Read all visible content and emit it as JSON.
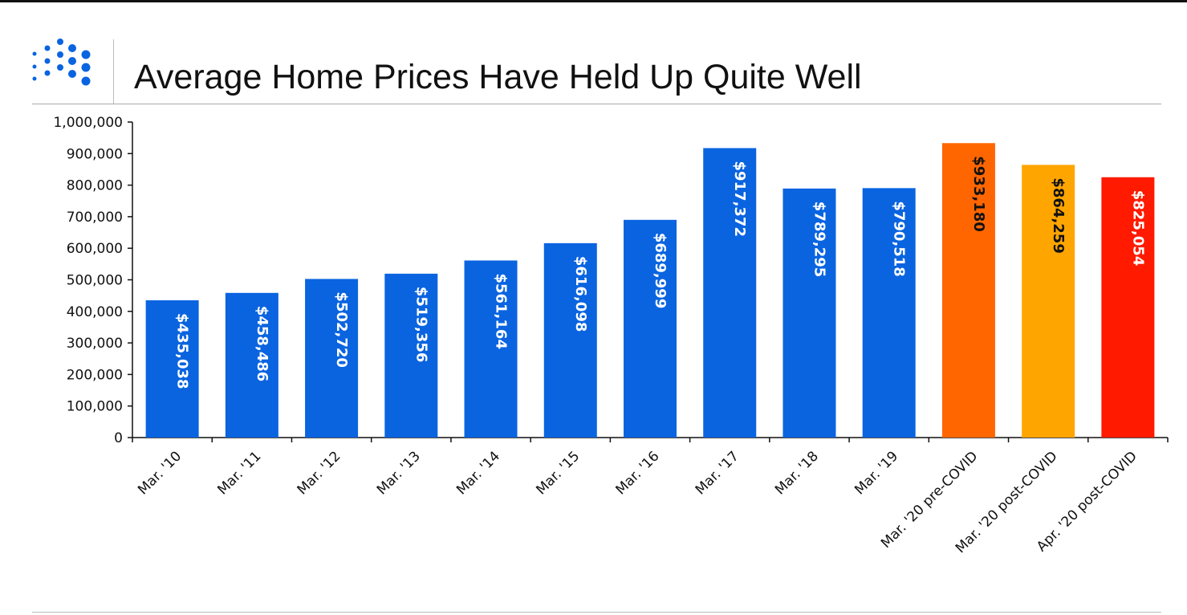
{
  "header": {
    "title": "Average Home Prices Have Held Up Quite Well",
    "logo_icon": "dot-grid-logo",
    "logo_color": "#0a64e0"
  },
  "chart_data": {
    "type": "bar",
    "title": "Average Home Prices Have Held Up Quite Well",
    "xlabel": "",
    "ylabel": "",
    "ylim": [
      0,
      1000000
    ],
    "yticks": [
      0,
      100000,
      200000,
      300000,
      400000,
      500000,
      600000,
      700000,
      800000,
      900000,
      1000000
    ],
    "ytick_labels": [
      "0",
      "100,000",
      "200,000",
      "300,000",
      "400,000",
      "500,000",
      "600,000",
      "700,000",
      "800,000",
      "900,000",
      "1,000,000"
    ],
    "grid": false,
    "categories": [
      "Mar. '10",
      "Mar. '11",
      "Mar. '12",
      "Mar. '13",
      "Mar. '14",
      "Mar. '15",
      "Mar. '16",
      "Mar. '17",
      "Mar. '18",
      "Mar. '19",
      "Mar. '20 pre-COVID",
      "Mar. '20 post-COVID",
      "Apr. '20 post-COVID"
    ],
    "values": [
      435038,
      458486,
      502720,
      519356,
      561164,
      616098,
      689999,
      917372,
      789295,
      790518,
      933180,
      864259,
      825054
    ],
    "data_labels": [
      "$435,038",
      "$458,486",
      "$502,720",
      "$519,356",
      "$561,164",
      "$616,098",
      "$689,999",
      "$917,372",
      "$789,295",
      "$790,518",
      "$933,180",
      "$864,259",
      "$825,054"
    ],
    "bar_colors": [
      "#0a64e0",
      "#0a64e0",
      "#0a64e0",
      "#0a64e0",
      "#0a64e0",
      "#0a64e0",
      "#0a64e0",
      "#0a64e0",
      "#0a64e0",
      "#0a64e0",
      "#ff6600",
      "#ffa500",
      "#ff1a00"
    ],
    "label_colors": [
      "#ffffff",
      "#ffffff",
      "#ffffff",
      "#ffffff",
      "#ffffff",
      "#ffffff",
      "#ffffff",
      "#ffffff",
      "#ffffff",
      "#ffffff",
      "#111111",
      "#111111",
      "#ffffff"
    ]
  }
}
